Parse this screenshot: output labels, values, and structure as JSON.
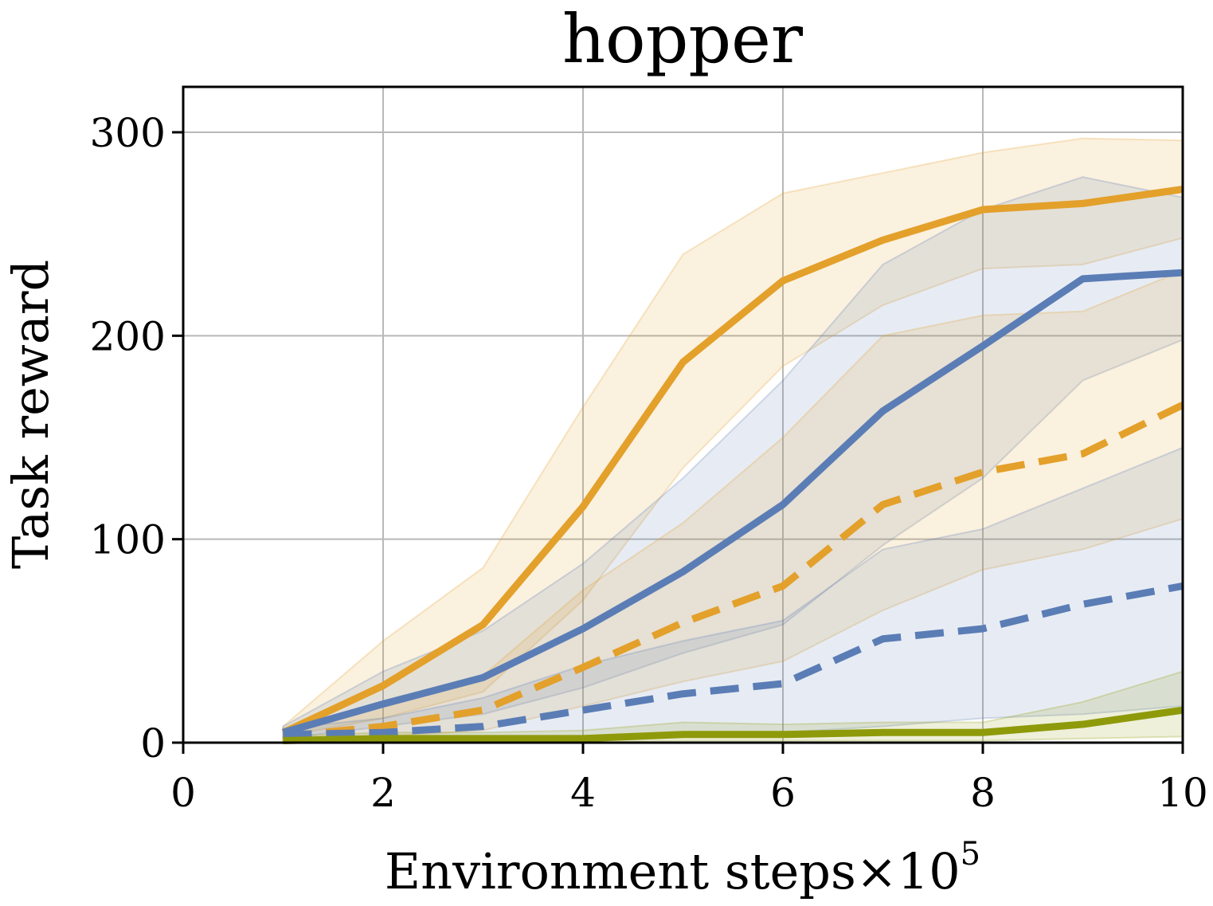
{
  "chart_data": {
    "type": "line",
    "title": "hopper",
    "xlabel": "Environment steps",
    "xlabel_multiplier_base": "×10",
    "xlabel_multiplier_exp": "5",
    "ylabel": "Task reward",
    "xlim": [
      0,
      10
    ],
    "ylim": [
      0,
      300
    ],
    "xticks": [
      0,
      2,
      4,
      6,
      8,
      10
    ],
    "yticks": [
      0,
      100,
      200,
      300
    ],
    "grid": true,
    "legend": "none",
    "x": [
      1,
      2,
      3,
      4,
      5,
      6,
      7,
      8,
      9,
      10
    ],
    "series": [
      {
        "color": "#e3a02a",
        "dash": "solid",
        "values": [
          5,
          28,
          58,
          116,
          187,
          227,
          247,
          262,
          265,
          272
        ],
        "lower": [
          3,
          12,
          25,
          70,
          135,
          185,
          215,
          233,
          235,
          248
        ],
        "upper": [
          8,
          50,
          86,
          165,
          240,
          270,
          280,
          290,
          297,
          296
        ]
      },
      {
        "color": "#5b7db5",
        "dash": "solid",
        "values": [
          5,
          19,
          32,
          56,
          84,
          117,
          163,
          195,
          228,
          231
        ],
        "lower": [
          2,
          8,
          14,
          27,
          44,
          58,
          97,
          130,
          178,
          198
        ],
        "upper": [
          8,
          35,
          55,
          88,
          130,
          178,
          235,
          262,
          278,
          268
        ]
      },
      {
        "color": "#e3a02a",
        "dash": "dashed",
        "values": [
          3,
          8,
          16,
          37,
          59,
          77,
          117,
          133,
          142,
          166
        ],
        "lower": [
          1,
          3,
          6,
          18,
          30,
          40,
          65,
          85,
          95,
          110
        ],
        "upper": [
          6,
          18,
          33,
          75,
          108,
          150,
          200,
          210,
          212,
          232
        ]
      },
      {
        "color": "#5b7db5",
        "dash": "dashed",
        "values": [
          4,
          5,
          8,
          16,
          24,
          29,
          51,
          56,
          68,
          77
        ],
        "lower": [
          1,
          1,
          2,
          3,
          4,
          5,
          8,
          12,
          14,
          18
        ],
        "upper": [
          7,
          12,
          22,
          38,
          50,
          60,
          95,
          105,
          125,
          145
        ]
      },
      {
        "color": "#8f9a0a",
        "dash": "solid",
        "values": [
          1,
          2,
          2,
          2,
          4,
          4,
          5,
          5,
          9,
          16
        ],
        "lower": [
          0,
          0,
          0,
          0,
          1,
          1,
          1,
          1,
          2,
          3
        ],
        "upper": [
          3,
          5,
          5,
          6,
          10,
          9,
          10,
          10,
          20,
          35
        ]
      }
    ]
  }
}
